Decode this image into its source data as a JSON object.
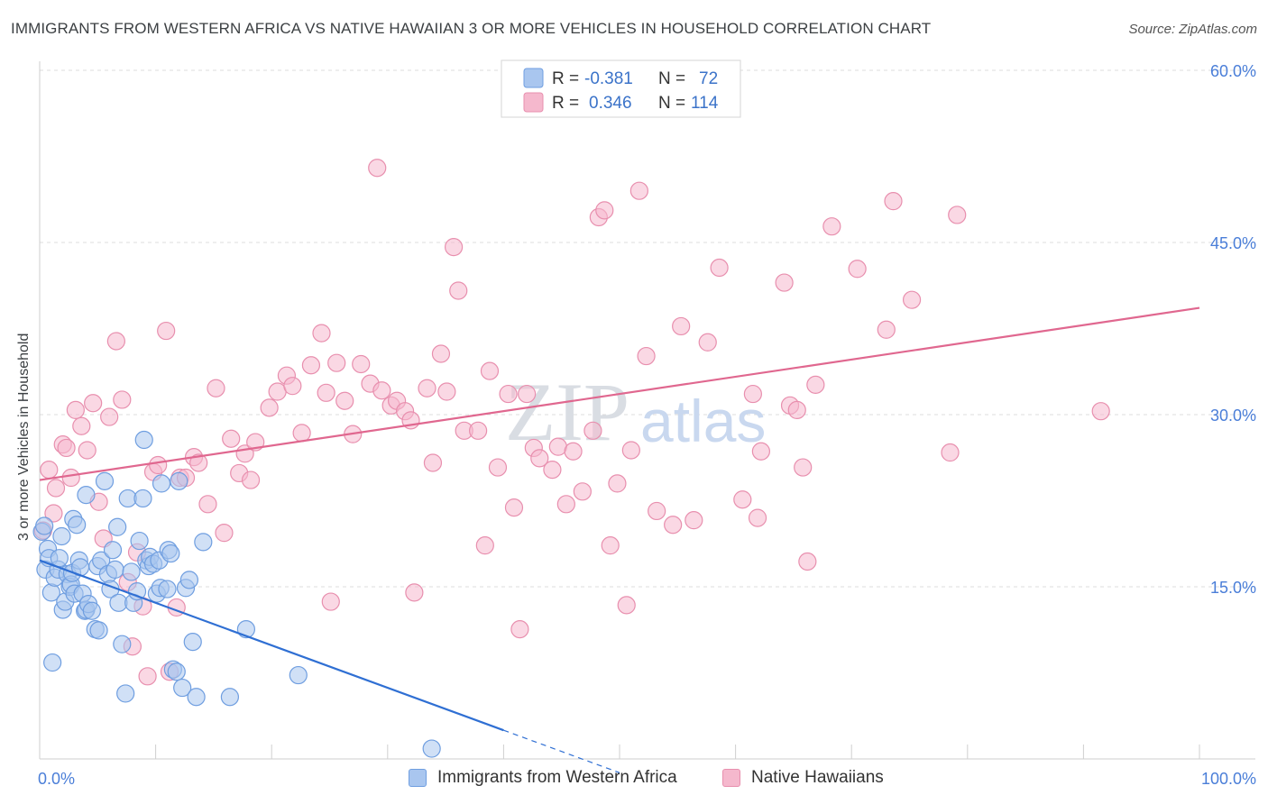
{
  "header": {
    "title": "IMMIGRANTS FROM WESTERN AFRICA VS NATIVE HAWAIIAN 3 OR MORE VEHICLES IN HOUSEHOLD CORRELATION CHART",
    "source": "Source: ZipAtlas.com"
  },
  "watermark": {
    "zip": "ZIP",
    "atlas": "atlas"
  },
  "legend": {
    "r_label": "R =",
    "n_label": "N =",
    "series": [
      {
        "r": "-0.381",
        "n": "72"
      },
      {
        "r": "0.346",
        "n": "114"
      }
    ]
  },
  "bottom_legend": {
    "items": [
      "Immigrants from Western Africa",
      "Native Hawaiians"
    ]
  },
  "colors": {
    "blue_fill": "#a9c6ef",
    "blue_stroke": "#6f9ee0",
    "blue_line": "#2f6fd3",
    "pink_fill": "#f5b8cd",
    "pink_stroke": "#e88fae",
    "pink_line": "#e0678f",
    "axis_text": "#4a7ed8"
  },
  "chart_data": {
    "type": "scatter",
    "title": "IMMIGRANTS FROM WESTERN AFRICA VS NATIVE HAWAIIAN 3 OR MORE VEHICLES IN HOUSEHOLD CORRELATION CHART",
    "xlabel": "",
    "ylabel": "3 or more Vehicles in Household",
    "xlim": [
      0,
      100
    ],
    "ylim": [
      0,
      60
    ],
    "x_tick_labels": [
      {
        "value": 0,
        "label": "0.0%"
      },
      {
        "value": 100,
        "label": "100.0%"
      }
    ],
    "y_tick_labels": [
      {
        "value": 15,
        "label": "15.0%"
      },
      {
        "value": 30,
        "label": "30.0%"
      },
      {
        "value": 45,
        "label": "45.0%"
      },
      {
        "value": 60,
        "label": "60.0%"
      }
    ],
    "series": [
      {
        "name": "Immigrants from Western Africa",
        "color_key": "blue",
        "trend": {
          "x0": 0,
          "y0": 17.3,
          "x1": 40,
          "y1": 2.5,
          "dash_to_x": 50
        },
        "points": [
          [
            0.2,
            19.8
          ],
          [
            0.5,
            16.5
          ],
          [
            0.7,
            18.3
          ],
          [
            0.8,
            17.5
          ],
          [
            1.0,
            14.5
          ],
          [
            1.1,
            8.4
          ],
          [
            1.3,
            15.8
          ],
          [
            1.6,
            16.5
          ],
          [
            1.7,
            17.5
          ],
          [
            2.0,
            13.0
          ],
          [
            2.2,
            13.7
          ],
          [
            2.4,
            16.1
          ],
          [
            2.6,
            15.0
          ],
          [
            2.7,
            15.2
          ],
          [
            2.8,
            16.2
          ],
          [
            2.9,
            20.9
          ],
          [
            3.0,
            14.4
          ],
          [
            3.2,
            20.4
          ],
          [
            3.4,
            17.3
          ],
          [
            3.5,
            16.7
          ],
          [
            3.7,
            14.4
          ],
          [
            3.9,
            12.9
          ],
          [
            4.0,
            13.0
          ],
          [
            4.2,
            13.5
          ],
          [
            4.5,
            12.9
          ],
          [
            4.8,
            11.3
          ],
          [
            5.0,
            16.8
          ],
          [
            5.1,
            11.2
          ],
          [
            5.3,
            17.3
          ],
          [
            5.6,
            24.2
          ],
          [
            5.9,
            16.1
          ],
          [
            6.1,
            14.8
          ],
          [
            6.3,
            18.2
          ],
          [
            6.5,
            16.5
          ],
          [
            6.8,
            13.6
          ],
          [
            7.1,
            10.0
          ],
          [
            7.4,
            5.7
          ],
          [
            7.6,
            22.7
          ],
          [
            7.9,
            16.3
          ],
          [
            8.1,
            13.6
          ],
          [
            8.4,
            14.6
          ],
          [
            8.6,
            19.0
          ],
          [
            8.9,
            22.7
          ],
          [
            9.0,
            27.8
          ],
          [
            9.2,
            17.3
          ],
          [
            9.4,
            16.8
          ],
          [
            9.5,
            17.6
          ],
          [
            9.8,
            17.0
          ],
          [
            10.1,
            14.4
          ],
          [
            10.3,
            17.3
          ],
          [
            10.4,
            14.9
          ],
          [
            10.5,
            24.0
          ],
          [
            11.0,
            14.8
          ],
          [
            11.1,
            18.2
          ],
          [
            11.3,
            17.9
          ],
          [
            11.5,
            7.8
          ],
          [
            11.8,
            7.6
          ],
          [
            12.0,
            24.2
          ],
          [
            12.3,
            6.2
          ],
          [
            12.6,
            14.9
          ],
          [
            12.9,
            15.6
          ],
          [
            13.2,
            10.2
          ],
          [
            13.5,
            5.4
          ],
          [
            14.1,
            18.9
          ],
          [
            16.4,
            5.4
          ],
          [
            17.8,
            11.3
          ],
          [
            22.3,
            7.3
          ],
          [
            33.8,
            0.9
          ],
          [
            0.4,
            20.3
          ],
          [
            1.9,
            19.4
          ],
          [
            4.0,
            23.0
          ],
          [
            6.7,
            20.2
          ]
        ]
      },
      {
        "name": "Native Hawaiians",
        "color_key": "pink",
        "trend": {
          "x0": 0,
          "y0": 24.3,
          "x1": 100,
          "y1": 39.3
        },
        "points": [
          [
            0.3,
            19.9
          ],
          [
            0.8,
            25.2
          ],
          [
            1.2,
            21.4
          ],
          [
            1.4,
            23.6
          ],
          [
            2.0,
            27.4
          ],
          [
            2.3,
            27.1
          ],
          [
            2.7,
            24.5
          ],
          [
            3.1,
            30.4
          ],
          [
            3.6,
            29.0
          ],
          [
            4.1,
            26.9
          ],
          [
            4.6,
            31.0
          ],
          [
            5.1,
            22.4
          ],
          [
            5.5,
            19.2
          ],
          [
            6.0,
            29.8
          ],
          [
            6.6,
            36.4
          ],
          [
            7.1,
            31.3
          ],
          [
            7.6,
            15.4
          ],
          [
            8.0,
            9.8
          ],
          [
            8.4,
            18.0
          ],
          [
            8.9,
            13.3
          ],
          [
            9.3,
            7.2
          ],
          [
            9.8,
            25.0
          ],
          [
            10.2,
            25.6
          ],
          [
            10.9,
            37.3
          ],
          [
            11.2,
            7.6
          ],
          [
            11.8,
            13.2
          ],
          [
            12.1,
            24.5
          ],
          [
            12.6,
            24.5
          ],
          [
            13.3,
            26.3
          ],
          [
            13.7,
            25.8
          ],
          [
            14.5,
            22.2
          ],
          [
            15.2,
            32.3
          ],
          [
            15.9,
            19.7
          ],
          [
            16.5,
            27.9
          ],
          [
            17.2,
            24.9
          ],
          [
            17.7,
            26.6
          ],
          [
            18.2,
            24.3
          ],
          [
            18.6,
            27.6
          ],
          [
            19.8,
            30.6
          ],
          [
            20.5,
            32.0
          ],
          [
            21.3,
            33.4
          ],
          [
            21.8,
            32.5
          ],
          [
            22.6,
            28.4
          ],
          [
            23.4,
            34.3
          ],
          [
            24.3,
            37.1
          ],
          [
            24.7,
            31.9
          ],
          [
            25.1,
            13.7
          ],
          [
            25.6,
            34.5
          ],
          [
            26.3,
            31.2
          ],
          [
            27.0,
            28.3
          ],
          [
            27.7,
            34.4
          ],
          [
            28.5,
            32.7
          ],
          [
            29.1,
            51.5
          ],
          [
            29.5,
            32.1
          ],
          [
            30.3,
            30.8
          ],
          [
            30.8,
            31.2
          ],
          [
            31.5,
            30.3
          ],
          [
            32.0,
            29.5
          ],
          [
            32.3,
            14.5
          ],
          [
            33.4,
            32.3
          ],
          [
            33.9,
            25.8
          ],
          [
            34.6,
            35.3
          ],
          [
            35.1,
            32.0
          ],
          [
            35.7,
            44.6
          ],
          [
            36.1,
            40.8
          ],
          [
            36.6,
            28.6
          ],
          [
            37.8,
            28.6
          ],
          [
            38.4,
            18.6
          ],
          [
            38.8,
            33.8
          ],
          [
            39.5,
            25.4
          ],
          [
            40.4,
            31.8
          ],
          [
            40.9,
            21.9
          ],
          [
            41.4,
            11.3
          ],
          [
            42.0,
            31.8
          ],
          [
            42.6,
            27.1
          ],
          [
            43.1,
            26.2
          ],
          [
            44.2,
            25.2
          ],
          [
            44.7,
            27.2
          ],
          [
            45.4,
            22.2
          ],
          [
            46.0,
            26.8
          ],
          [
            46.8,
            23.3
          ],
          [
            47.7,
            28.6
          ],
          [
            48.2,
            47.2
          ],
          [
            48.7,
            47.8
          ],
          [
            49.2,
            18.6
          ],
          [
            49.8,
            24.0
          ],
          [
            50.6,
            13.4
          ],
          [
            51.0,
            26.9
          ],
          [
            51.7,
            49.5
          ],
          [
            52.3,
            35.1
          ],
          [
            53.2,
            21.6
          ],
          [
            54.6,
            20.4
          ],
          [
            55.3,
            37.7
          ],
          [
            56.4,
            20.8
          ],
          [
            57.6,
            36.3
          ],
          [
            58.6,
            42.8
          ],
          [
            60.6,
            22.6
          ],
          [
            61.5,
            31.8
          ],
          [
            61.9,
            21.0
          ],
          [
            62.2,
            26.8
          ],
          [
            64.2,
            41.5
          ],
          [
            64.7,
            30.8
          ],
          [
            65.3,
            30.4
          ],
          [
            65.8,
            25.4
          ],
          [
            66.2,
            17.2
          ],
          [
            66.9,
            32.6
          ],
          [
            68.3,
            46.4
          ],
          [
            70.5,
            42.7
          ],
          [
            73.0,
            37.4
          ],
          [
            73.6,
            48.6
          ],
          [
            75.2,
            40.0
          ],
          [
            78.5,
            26.7
          ],
          [
            79.1,
            47.4
          ],
          [
            91.5,
            30.3
          ]
        ]
      }
    ]
  }
}
